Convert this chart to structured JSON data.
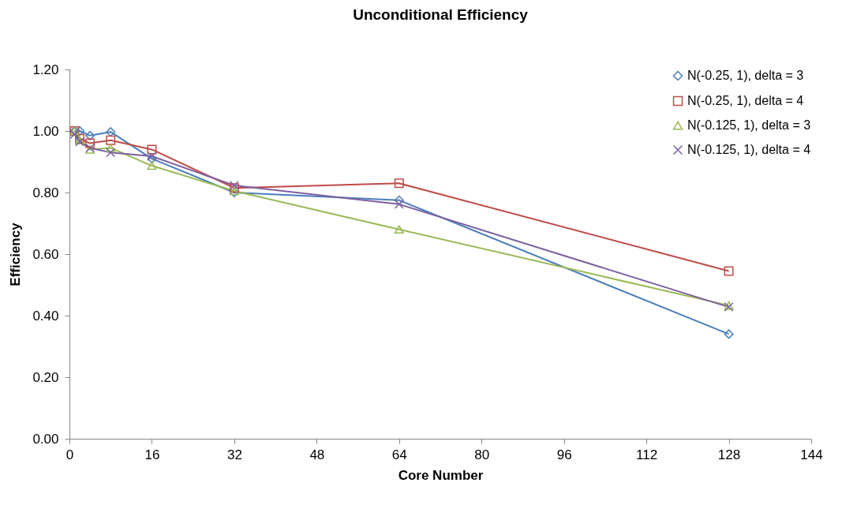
{
  "chart_data": {
    "type": "line",
    "title": "Unconditional Efficiency",
    "xlabel": "Core Number",
    "ylabel": "Efficiency",
    "x": [
      1,
      2,
      4,
      8,
      16,
      32,
      64,
      128
    ],
    "series": [
      {
        "name": "N(-0.25, 1), delta = 3",
        "color": "#4a7ebb",
        "marker": "diamond",
        "values": [
          1.0,
          1.0,
          0.985,
          0.997,
          0.91,
          0.8,
          0.775,
          0.34
        ]
      },
      {
        "name": "N(-0.25, 1), delta = 4",
        "color": "#be4b48",
        "marker": "square",
        "values": [
          1.0,
          0.975,
          0.96,
          0.97,
          0.94,
          0.815,
          0.83,
          0.545
        ]
      },
      {
        "name": "N(-0.125, 1), delta = 3",
        "color": "#98b954",
        "marker": "triangle",
        "values": [
          1.0,
          0.97,
          0.94,
          0.945,
          0.887,
          0.805,
          0.68,
          0.433
        ]
      },
      {
        "name": "N(-0.125, 1), delta = 4",
        "color": "#7d60a0",
        "marker": "cross",
        "values": [
          0.99,
          0.965,
          0.945,
          0.93,
          0.918,
          0.823,
          0.762,
          0.428
        ]
      }
    ],
    "xlim": [
      0,
      144
    ],
    "xticks": [
      0,
      16,
      32,
      48,
      64,
      80,
      96,
      112,
      128,
      144
    ],
    "ylim": [
      0,
      1.2
    ],
    "yticks": [
      {
        "value": 0,
        "label": "0.00"
      },
      {
        "value": 0.2,
        "label": "0.20"
      },
      {
        "value": 0.4,
        "label": "0.40"
      },
      {
        "value": 0.6,
        "label": "0.60"
      },
      {
        "value": 0.8,
        "label": "0.80"
      },
      {
        "value": 1.0,
        "label": "1.00"
      },
      {
        "value": 1.2,
        "label": "1.20"
      }
    ],
    "grid": false,
    "legend": "top right",
    "line_style": "solid"
  }
}
